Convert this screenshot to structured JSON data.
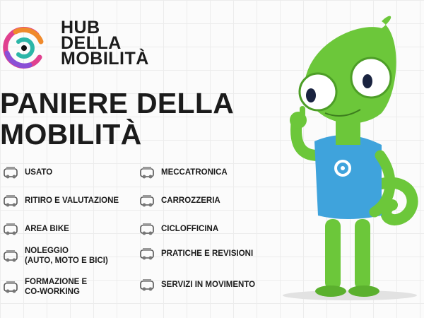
{
  "brand": {
    "lines": [
      "HUB",
      "DELLA",
      "MOBILITÀ"
    ],
    "logo_colors": [
      "#f08a2c",
      "#e0408f",
      "#8a4fd6",
      "#2bb6a8"
    ]
  },
  "title": {
    "lines": [
      "PANIERE DELLA",
      "MOBILITÀ"
    ]
  },
  "services_left": [
    {
      "label": "USATO",
      "icon": "used-car-icon"
    },
    {
      "label": "RITIRO E VALUTAZIONE",
      "icon": "car-evaluation-icon"
    },
    {
      "label": "AREA BIKE",
      "icon": "bike-icon"
    },
    {
      "label": "NOLEGGIO\n(AUTO, MOTO E BICI)",
      "icon": "rental-document-icon"
    },
    {
      "label": "FORMAZIONE E\nCO-WORKING",
      "icon": "meeting-icon"
    }
  ],
  "services_right": [
    {
      "label": "MECCATRONICA",
      "icon": "mechatronics-car-icon"
    },
    {
      "label": "CARROZZERIA",
      "icon": "body-shop-icon"
    },
    {
      "label": "CICLOFFICINA",
      "icon": "bike-repair-icon"
    },
    {
      "label": "PRATICHE E REVISIONI",
      "icon": "paperwork-icon"
    },
    {
      "label": "SERVIZI IN MOVIMENTO",
      "icon": "mobile-service-icon"
    }
  ],
  "mascot": {
    "body_color": "#6cc73a",
    "shirt_color": "#3fa3dc"
  }
}
